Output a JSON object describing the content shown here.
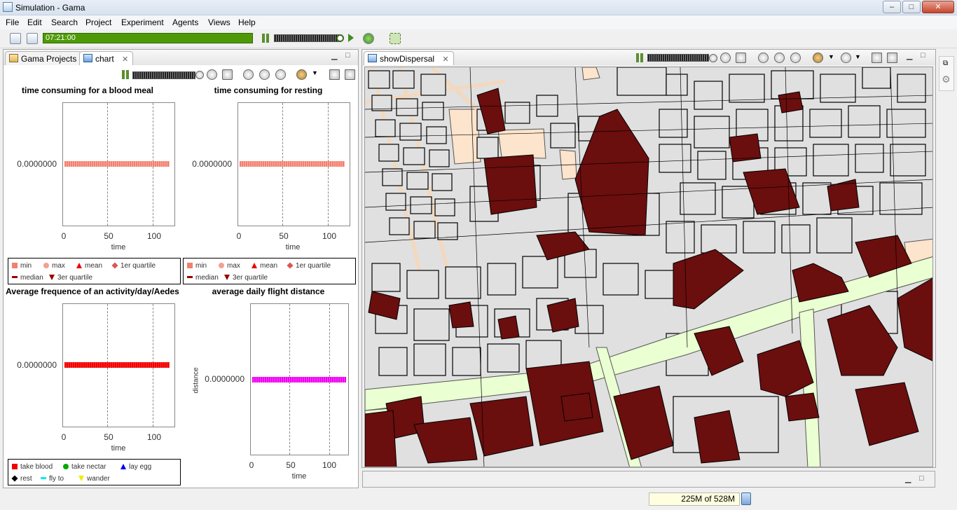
{
  "window": {
    "title": "Simulation - Gama"
  },
  "menu": [
    "File",
    "Edit",
    "Search",
    "Project",
    "Experiment",
    "Agents",
    "Views",
    "Help"
  ],
  "toolbar": {
    "clock": "07:21:00"
  },
  "left_panel": {
    "tabs": [
      {
        "label": "Gama Projects"
      },
      {
        "label": "chart"
      }
    ]
  },
  "right_panel": {
    "tabs": [
      {
        "label": "showDispersal"
      }
    ]
  },
  "colors": {
    "building_dark": "#6b0e0e",
    "building_light": "#e0e0e0",
    "road": "#f5f5dc",
    "landuse": "#eaffd2",
    "bg": "#ffffff"
  },
  "charts": {
    "blood_meal": {
      "title": "time consuming for a blood meal",
      "ylabel": "",
      "xlabel": "time",
      "ytick": "0.0000000",
      "xticks": [
        "0",
        "50",
        "100"
      ]
    },
    "resting": {
      "title": "time consuming for resting",
      "ylabel": "",
      "xlabel": "time",
      "ytick": "0.0000000",
      "xticks": [
        "0",
        "50",
        "100"
      ]
    },
    "frequence": {
      "title": "Average frequence of an activity/day/Aedes",
      "ylabel": "",
      "xlabel": "time",
      "ytick": "0.0000000",
      "xticks": [
        "0",
        "50",
        "100"
      ]
    },
    "flight": {
      "title": "average daily flight distance",
      "ylabel": "distance",
      "xlabel": "time",
      "ytick": "0.0000000",
      "xticks": [
        "0",
        "50",
        "100"
      ]
    }
  },
  "legends": {
    "stats": [
      "min",
      "max",
      "mean",
      "1er quartile",
      "median",
      "3er quartile"
    ],
    "activity": [
      "take blood",
      "take nectar",
      "lay egg",
      "rest",
      "fly to",
      "wander"
    ]
  },
  "chart_data": [
    {
      "type": "line",
      "title": "time consuming for a blood meal",
      "xlabel": "time",
      "ylabel": "",
      "x": [
        0,
        120
      ],
      "series": [
        {
          "name": "min",
          "values": [
            0,
            0
          ]
        },
        {
          "name": "max",
          "values": [
            0,
            0
          ]
        },
        {
          "name": "mean",
          "values": [
            0,
            0
          ]
        },
        {
          "name": "1er quartile",
          "values": [
            0,
            0
          ]
        },
        {
          "name": "median",
          "values": [
            0,
            0
          ]
        },
        {
          "name": "3er quartile",
          "values": [
            0,
            0
          ]
        }
      ],
      "xlim": [
        0,
        120
      ]
    },
    {
      "type": "line",
      "title": "time consuming for resting",
      "xlabel": "time",
      "ylabel": "",
      "x": [
        0,
        120
      ],
      "series": [
        {
          "name": "min",
          "values": [
            0,
            0
          ]
        },
        {
          "name": "max",
          "values": [
            0,
            0
          ]
        },
        {
          "name": "mean",
          "values": [
            0,
            0
          ]
        },
        {
          "name": "1er quartile",
          "values": [
            0,
            0
          ]
        },
        {
          "name": "median",
          "values": [
            0,
            0
          ]
        },
        {
          "name": "3er quartile",
          "values": [
            0,
            0
          ]
        }
      ],
      "xlim": [
        0,
        120
      ]
    },
    {
      "type": "line",
      "title": "Average frequence of an activity/day/Aedes",
      "xlabel": "time",
      "ylabel": "",
      "x": [
        0,
        120
      ],
      "series": [
        {
          "name": "take blood",
          "values": [
            0,
            0
          ]
        },
        {
          "name": "take nectar",
          "values": [
            0,
            0
          ]
        },
        {
          "name": "lay egg",
          "values": [
            0,
            0
          ]
        },
        {
          "name": "rest",
          "values": [
            0,
            0
          ]
        },
        {
          "name": "fly to",
          "values": [
            0,
            0
          ]
        },
        {
          "name": "wander",
          "values": [
            0,
            0
          ]
        }
      ],
      "xlim": [
        0,
        120
      ]
    },
    {
      "type": "line",
      "title": "average daily flight distance",
      "xlabel": "time",
      "ylabel": "distance",
      "x": [
        0,
        120
      ],
      "series": [
        {
          "name": "distance",
          "values": [
            0,
            0
          ]
        }
      ],
      "xlim": [
        0,
        120
      ]
    }
  ],
  "status": {
    "memory": "225M of 528M"
  }
}
